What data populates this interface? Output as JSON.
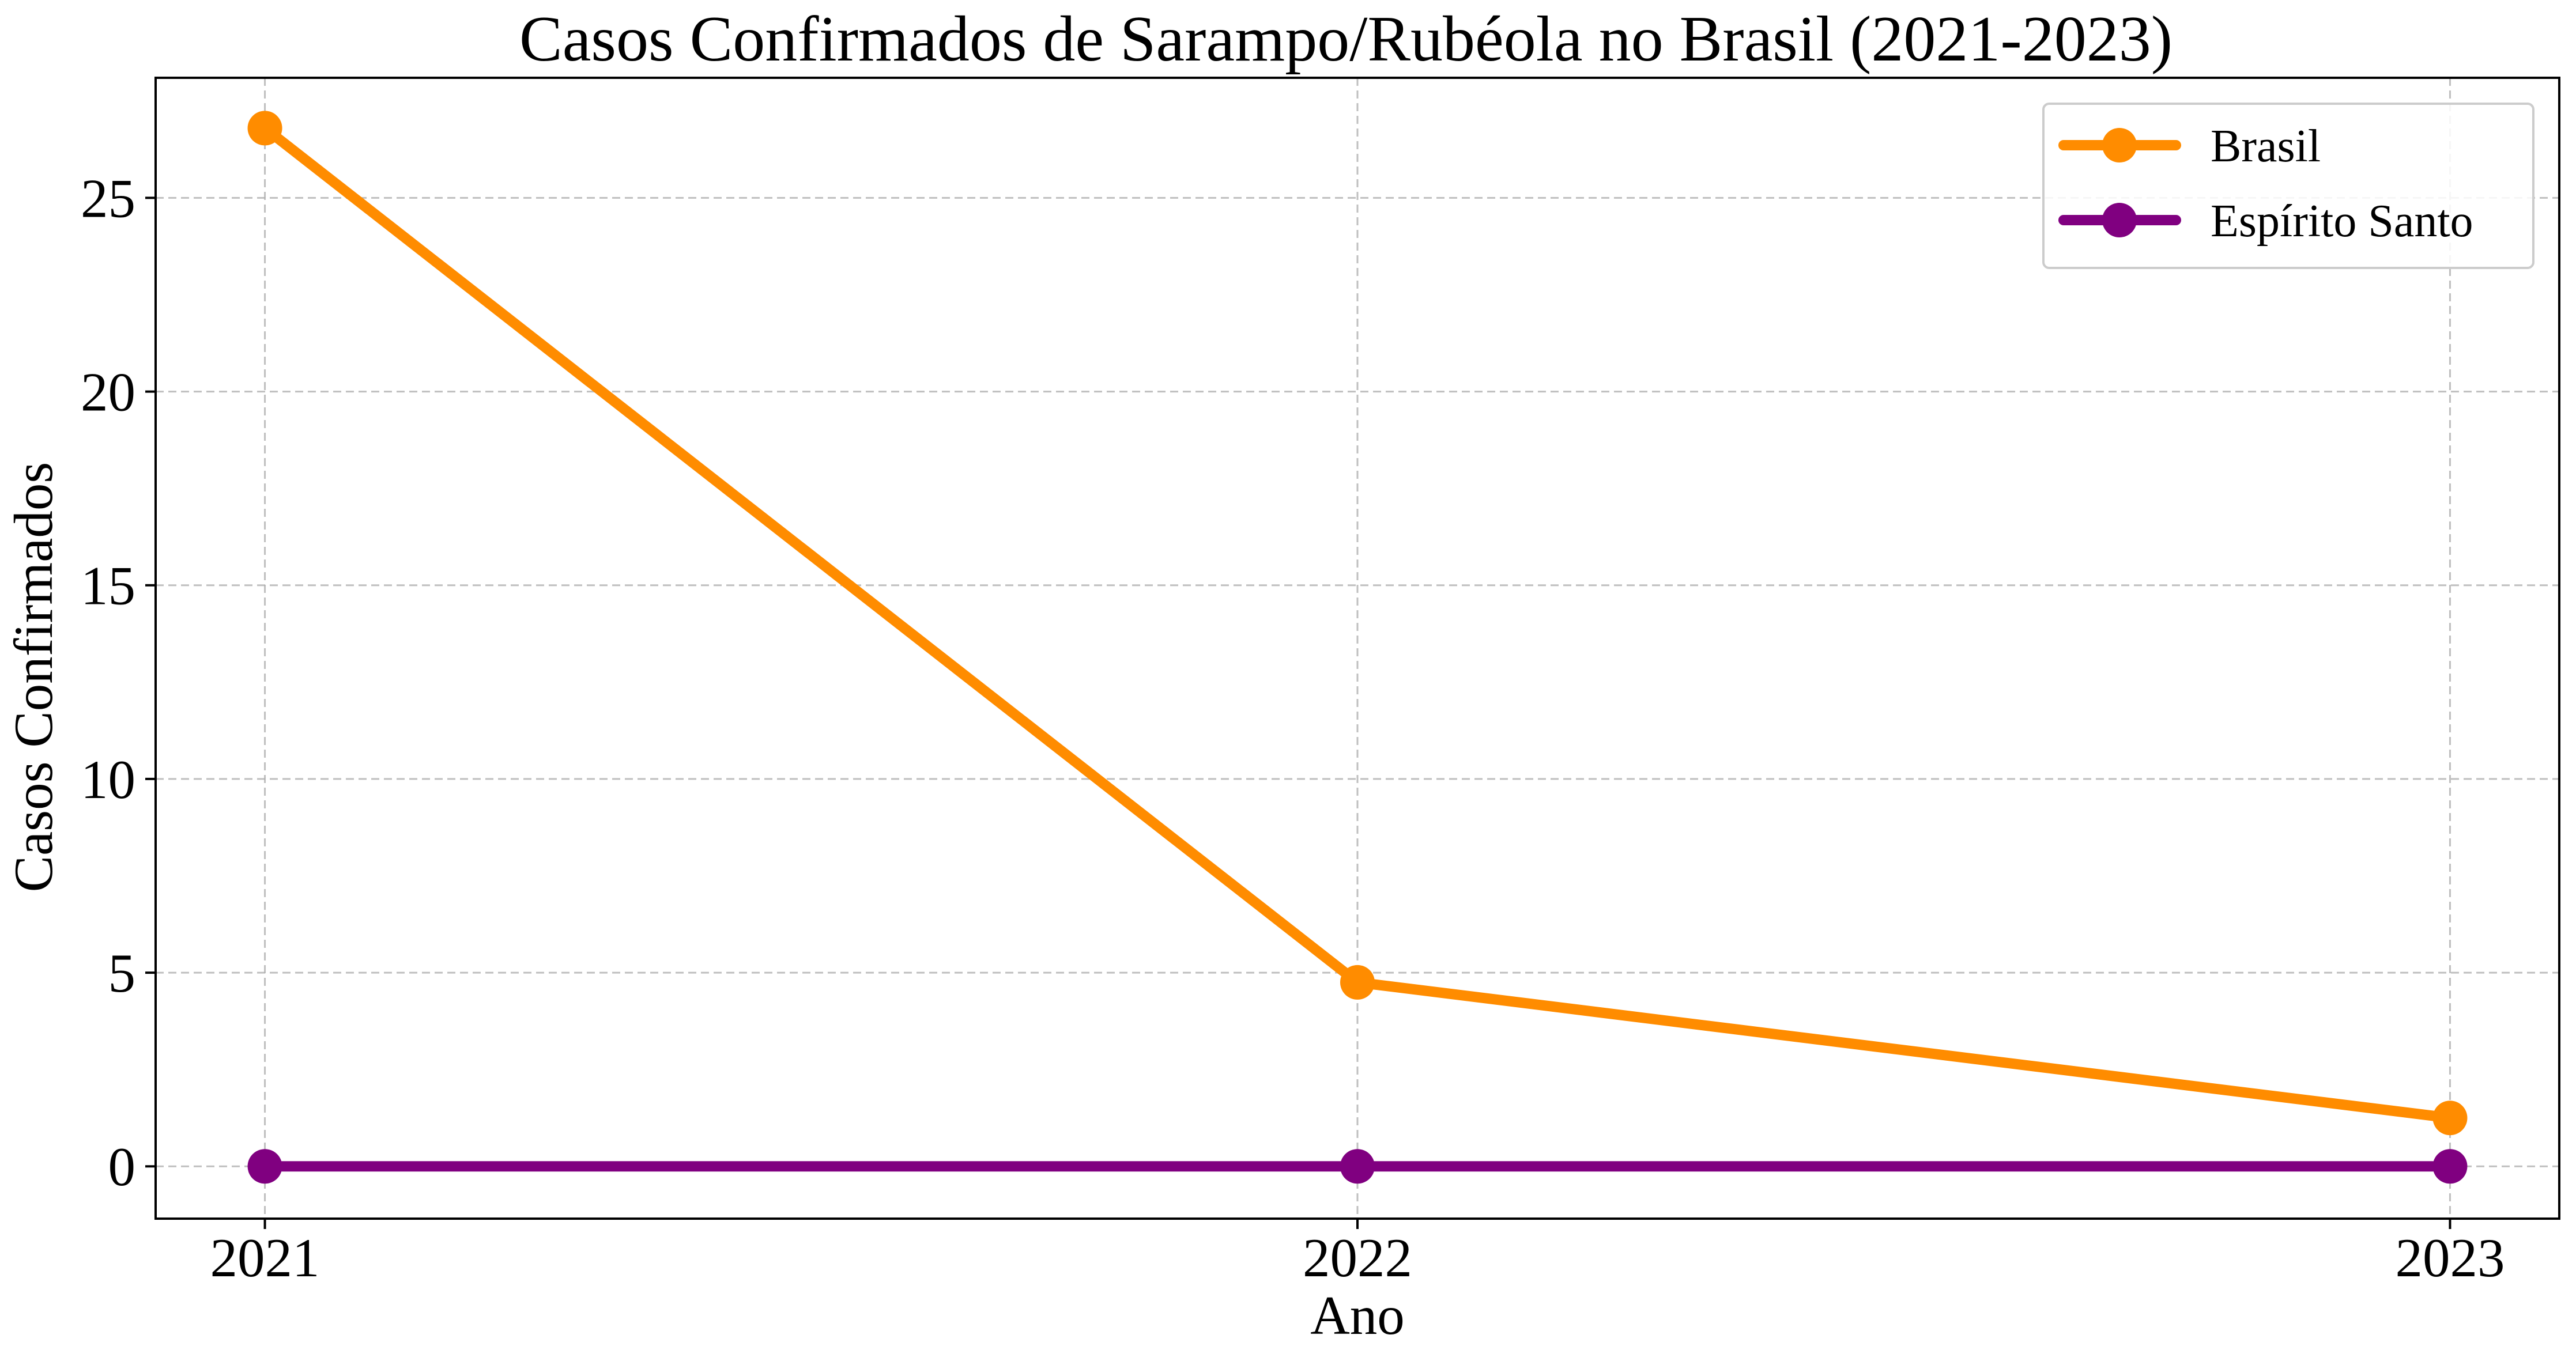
{
  "chart_data": {
    "type": "line",
    "title": "Casos Confirmados de Sarampo/Rubéola no Brasil (2021-2023)",
    "xlabel": "Ano",
    "ylabel": "Casos Confirmados",
    "x": [
      2021,
      2022,
      2023
    ],
    "x_tick_labels": [
      "2021",
      "2022",
      "2023"
    ],
    "y_ticks": [
      0,
      5,
      10,
      15,
      20,
      25
    ],
    "y_tick_labels": [
      "0",
      "5",
      "10",
      "15",
      "20",
      "25"
    ],
    "ylim": [
      -1.35,
      28.1
    ],
    "grid": true,
    "legend_position": "top-right",
    "series": [
      {
        "name": "Brasil",
        "color": "#ff8c00",
        "marker": "circle",
        "values": [
          26.8,
          4.75,
          1.25
        ]
      },
      {
        "name": "Espírito Santo",
        "color": "#800080",
        "marker": "circle",
        "values": [
          0,
          0,
          0
        ]
      }
    ]
  }
}
